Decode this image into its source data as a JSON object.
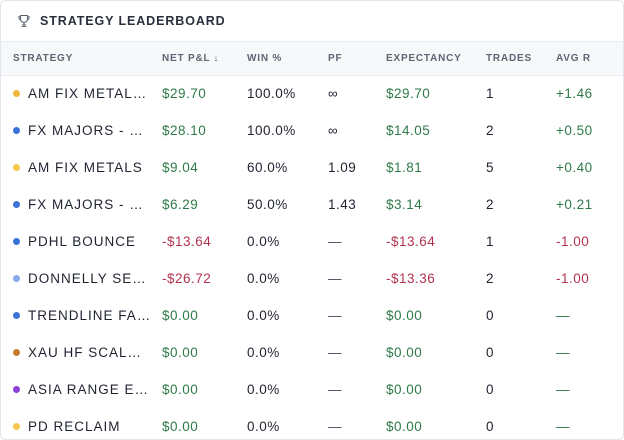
{
  "header": {
    "title": "STRATEGY LEADERBOARD",
    "icon": "trophy-icon"
  },
  "columns": {
    "strategy": "STRATEGY",
    "net_pnl": "NET P&L",
    "sort_indicator": "↓",
    "win_pct": "WIN %",
    "pf": "PF",
    "expectancy": "EXPECTANCY",
    "trades": "TRADES",
    "avg_r": "AVG R"
  },
  "colors": {
    "positive": "#2f7a4a",
    "negative": "#b3334f"
  },
  "rows": [
    {
      "dot_color": "#f0b73c",
      "name": "AM FIX METAL…",
      "net": "$29.70",
      "net_tone": "pos",
      "win": "100.0%",
      "pf": "∞",
      "exp": "$29.70",
      "exp_tone": "pos",
      "trades": "1",
      "avg_r": "+1.46",
      "avg_tone": "pos"
    },
    {
      "dot_color": "#3a73d8",
      "name": "FX MAJORS - …",
      "net": "$28.10",
      "net_tone": "pos",
      "win": "100.0%",
      "pf": "∞",
      "exp": "$14.05",
      "exp_tone": "pos",
      "trades": "2",
      "avg_r": "+0.50",
      "avg_tone": "pos"
    },
    {
      "dot_color": "#f6c64f",
      "name": "AM FIX METALS",
      "net": "$9.04",
      "net_tone": "pos",
      "win": "60.0%",
      "pf": "1.09",
      "exp": "$1.81",
      "exp_tone": "pos",
      "trades": "5",
      "avg_r": "+0.40",
      "avg_tone": "pos"
    },
    {
      "dot_color": "#3a73d8",
      "name": "FX MAJORS - …",
      "net": "$6.29",
      "net_tone": "pos",
      "win": "50.0%",
      "pf": "1.43",
      "exp": "$3.14",
      "exp_tone": "pos",
      "trades": "2",
      "avg_r": "+0.21",
      "avg_tone": "pos"
    },
    {
      "dot_color": "#3a73d8",
      "name": "PDHL BOUNCE",
      "net": "-$13.64",
      "net_tone": "neg",
      "win": "0.0%",
      "pf": "—",
      "exp": "-$13.64",
      "exp_tone": "neg",
      "trades": "1",
      "avg_r": "-1.00",
      "avg_tone": "neg"
    },
    {
      "dot_color": "#8aa9e8",
      "name": "DONNELLY SE…",
      "net": "-$26.72",
      "net_tone": "neg",
      "win": "0.0%",
      "pf": "—",
      "exp": "-$13.36",
      "exp_tone": "neg",
      "trades": "2",
      "avg_r": "-1.00",
      "avg_tone": "neg"
    },
    {
      "dot_color": "#3a73d8",
      "name": "TRENDLINE FA…",
      "net": "$0.00",
      "net_tone": "pos",
      "win": "0.0%",
      "pf": "—",
      "exp": "$0.00",
      "exp_tone": "pos",
      "trades": "0",
      "avg_r": "—",
      "avg_tone": "pos"
    },
    {
      "dot_color": "#c77a2e",
      "name": "XAU HF SCAL…",
      "net": "$0.00",
      "net_tone": "pos",
      "win": "0.0%",
      "pf": "—",
      "exp": "$0.00",
      "exp_tone": "pos",
      "trades": "0",
      "avg_r": "—",
      "avg_tone": "pos"
    },
    {
      "dot_color": "#8a3fd6",
      "name": "ASIA RANGE E…",
      "net": "$0.00",
      "net_tone": "pos",
      "win": "0.0%",
      "pf": "—",
      "exp": "$0.00",
      "exp_tone": "pos",
      "trades": "0",
      "avg_r": "—",
      "avg_tone": "pos"
    },
    {
      "dot_color": "#f6c64f",
      "name": "PD RECLAIM",
      "net": "$0.00",
      "net_tone": "pos",
      "win": "0.0%",
      "pf": "—",
      "exp": "$0.00",
      "exp_tone": "pos",
      "trades": "0",
      "avg_r": "—",
      "avg_tone": "pos"
    }
  ]
}
